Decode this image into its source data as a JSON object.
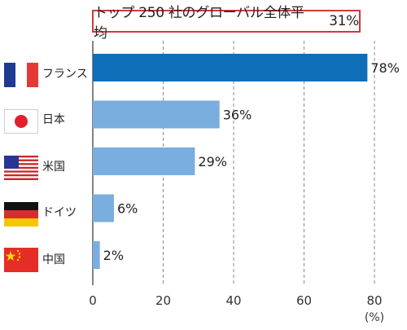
{
  "chart_data": {
    "type": "bar",
    "orientation": "horizontal",
    "title": "トップ 250 社のグローバル全体平均",
    "title_value": "31%",
    "categories": [
      "フランス",
      "日本",
      "米国",
      "ドイツ",
      "中国"
    ],
    "values": [
      78,
      36,
      29,
      6,
      2
    ],
    "value_labels": [
      "78%",
      "36%",
      "29%",
      "6%",
      "2%"
    ],
    "xlim": [
      0,
      80
    ],
    "xticks": [
      0,
      20,
      40,
      60,
      80
    ],
    "xunit": "(%)",
    "grid": "vertical-dashed",
    "colors": {
      "highlight": "#0E6EB8",
      "normal": "#7AAEDE",
      "title_border": "#D23A3A"
    }
  },
  "flags": [
    "france",
    "japan",
    "usa",
    "germany",
    "china"
  ]
}
